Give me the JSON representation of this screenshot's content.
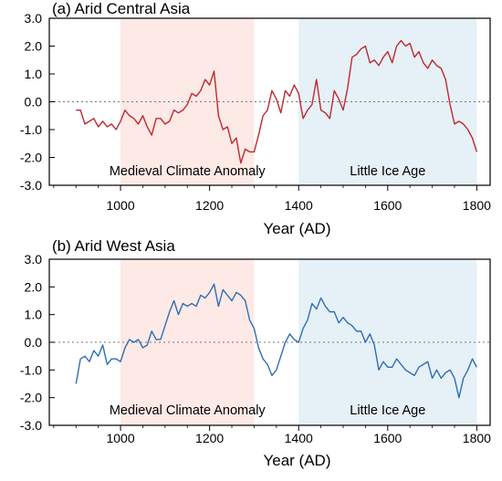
{
  "chart_data": [
    {
      "type": "line",
      "title": "(a) Arid Central Asia",
      "xlabel": "Year (AD)",
      "ylabel": "",
      "xlim": [
        840,
        1830
      ],
      "ylim": [
        -3.0,
        3.0
      ],
      "xticks": [
        1000,
        1200,
        1400,
        1600,
        1800
      ],
      "yticks": [
        -3.0,
        -2.0,
        -1.0,
        0.0,
        1.0,
        2.0,
        3.0
      ],
      "ytick_labels": [
        "-3.0",
        "-2.0",
        "-1.0",
        "0.0",
        "1.0",
        "2.0",
        "3.0"
      ],
      "reference_line": 0.0,
      "color": "#c0282d",
      "shaded_periods": [
        {
          "label": "Medieval Climate Anomaly",
          "start": 1000,
          "end": 1300,
          "color": "#fde9e6"
        },
        {
          "label": "Little Ice Age",
          "start": 1400,
          "end": 1800,
          "color": "#e6f0f7"
        }
      ],
      "series": [
        {
          "x": [
            900,
            910,
            920,
            930,
            940,
            950,
            960,
            970,
            980,
            990,
            1000,
            1010,
            1020,
            1030,
            1040,
            1050,
            1060,
            1070,
            1080,
            1090,
            1100,
            1110,
            1120,
            1130,
            1140,
            1150,
            1160,
            1170,
            1180,
            1190,
            1200,
            1210,
            1220,
            1230,
            1240,
            1250,
            1260,
            1270,
            1280,
            1290,
            1300,
            1310,
            1320,
            1330,
            1340,
            1350,
            1360,
            1370,
            1380,
            1390,
            1400,
            1410,
            1420,
            1430,
            1440,
            1450,
            1460,
            1470,
            1480,
            1490,
            1500,
            1510,
            1520,
            1530,
            1540,
            1550,
            1560,
            1570,
            1580,
            1590,
            1600,
            1610,
            1620,
            1630,
            1640,
            1650,
            1660,
            1670,
            1680,
            1690,
            1700,
            1710,
            1720,
            1730,
            1740,
            1750,
            1760,
            1770,
            1780,
            1790,
            1800
          ],
          "values": [
            -0.3,
            -0.3,
            -0.8,
            -0.7,
            -0.6,
            -0.9,
            -0.7,
            -0.9,
            -0.8,
            -1.0,
            -0.7,
            -0.3,
            -0.5,
            -0.6,
            -0.8,
            -0.5,
            -0.9,
            -1.2,
            -0.6,
            -0.6,
            -0.8,
            -0.7,
            -0.3,
            -0.4,
            -0.3,
            -0.1,
            0.3,
            0.2,
            0.4,
            0.8,
            0.6,
            1.1,
            -0.5,
            -1.0,
            -0.9,
            -1.5,
            -1.3,
            -2.2,
            -1.7,
            -1.8,
            -1.8,
            -1.2,
            -0.5,
            -0.3,
            0.4,
            0.1,
            -0.4,
            0.4,
            0.2,
            0.6,
            0.3,
            -0.6,
            -0.3,
            -0.1,
            0.8,
            -0.3,
            -0.4,
            -0.6,
            0.4,
            0.1,
            -0.3,
            0.5,
            1.6,
            1.7,
            1.9,
            2.0,
            1.4,
            1.5,
            1.3,
            1.6,
            1.8,
            1.4,
            2.0,
            2.2,
            2.0,
            2.1,
            1.6,
            1.8,
            1.4,
            1.2,
            1.5,
            1.3,
            1.2,
            0.8,
            -0.1,
            -0.8,
            -0.7,
            -0.8,
            -1.0,
            -1.3,
            -1.8
          ]
        }
      ]
    },
    {
      "type": "line",
      "title": "(b) Arid West Asia",
      "xlabel": "Year (AD)",
      "ylabel": "",
      "xlim": [
        840,
        1830
      ],
      "ylim": [
        -3.0,
        3.0
      ],
      "xticks": [
        1000,
        1200,
        1400,
        1600,
        1800
      ],
      "yticks": [
        -3.0,
        -2.0,
        -1.0,
        0.0,
        1.0,
        2.0,
        3.0
      ],
      "ytick_labels": [
        "-3.0",
        "-2.0",
        "-1.0",
        "0.0",
        "1.0",
        "2.0",
        "3.0"
      ],
      "reference_line": 0.0,
      "color": "#2e6eb5",
      "shaded_periods": [
        {
          "label": "Medieval Climate Anomaly",
          "start": 1000,
          "end": 1300,
          "color": "#fde9e6"
        },
        {
          "label": "Little Ice Age",
          "start": 1400,
          "end": 1800,
          "color": "#e6f0f7"
        }
      ],
      "series": [
        {
          "x": [
            900,
            910,
            920,
            930,
            940,
            950,
            960,
            970,
            980,
            990,
            1000,
            1010,
            1020,
            1030,
            1040,
            1050,
            1060,
            1070,
            1080,
            1090,
            1100,
            1110,
            1120,
            1130,
            1140,
            1150,
            1160,
            1170,
            1180,
            1190,
            1200,
            1210,
            1220,
            1230,
            1240,
            1250,
            1260,
            1270,
            1280,
            1290,
            1300,
            1310,
            1320,
            1330,
            1340,
            1350,
            1360,
            1370,
            1380,
            1390,
            1400,
            1410,
            1420,
            1430,
            1440,
            1450,
            1460,
            1470,
            1480,
            1490,
            1500,
            1510,
            1520,
            1530,
            1540,
            1550,
            1560,
            1570,
            1580,
            1590,
            1600,
            1610,
            1620,
            1630,
            1640,
            1650,
            1660,
            1670,
            1680,
            1690,
            1700,
            1710,
            1720,
            1730,
            1740,
            1750,
            1760,
            1770,
            1780,
            1790,
            1800
          ],
          "values": [
            -1.5,
            -0.6,
            -0.5,
            -0.7,
            -0.3,
            -0.5,
            -0.1,
            -0.8,
            -0.6,
            -0.6,
            -0.7,
            -0.2,
            0.1,
            0.0,
            0.1,
            -0.2,
            -0.1,
            0.4,
            0.1,
            0.1,
            0.6,
            1.1,
            1.5,
            1.0,
            1.4,
            1.3,
            1.4,
            1.3,
            1.7,
            1.6,
            1.8,
            2.1,
            1.3,
            1.9,
            1.7,
            1.5,
            1.8,
            1.7,
            1.5,
            0.8,
            0.5,
            -0.2,
            -0.6,
            -0.8,
            -1.2,
            -1.0,
            -0.5,
            0.0,
            0.3,
            0.1,
            0.0,
            0.5,
            0.8,
            1.4,
            1.2,
            1.6,
            1.3,
            1.1,
            1.1,
            0.7,
            0.9,
            0.7,
            0.6,
            0.4,
            0.4,
            0.0,
            0.3,
            -0.1,
            -1.0,
            -0.7,
            -0.9,
            -0.9,
            -0.6,
            -0.8,
            -1.0,
            -1.1,
            -1.2,
            -0.9,
            -0.8,
            -0.7,
            -1.3,
            -1.0,
            -1.3,
            -1.1,
            -1.0,
            -1.3,
            -2.0,
            -1.3,
            -1.0,
            -0.6,
            -0.9
          ]
        }
      ]
    }
  ]
}
